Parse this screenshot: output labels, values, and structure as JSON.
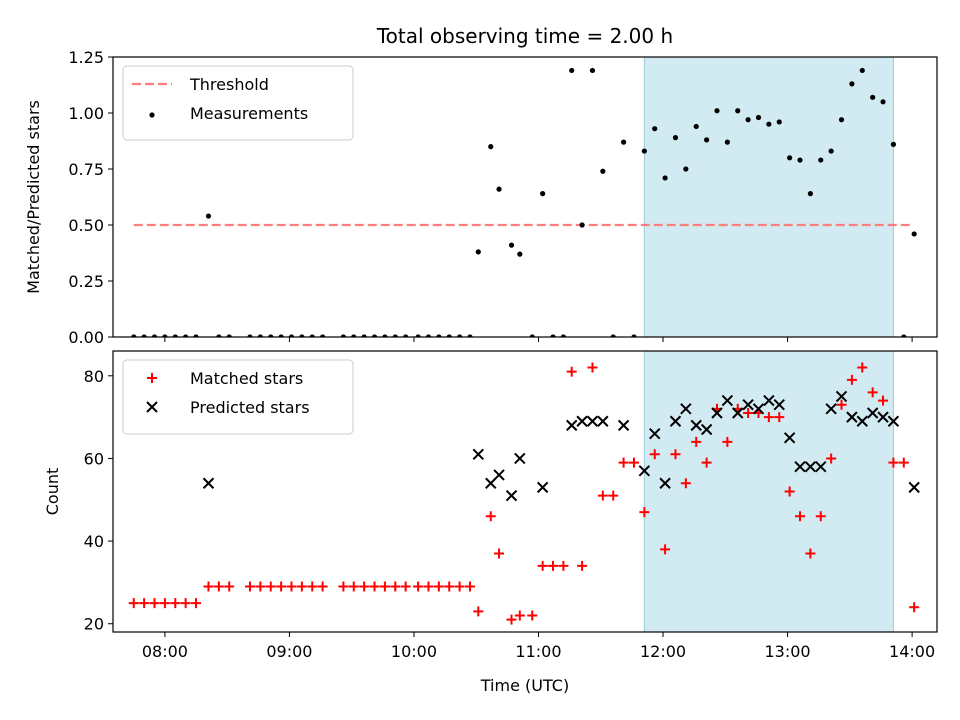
{
  "chart_data": [
    {
      "type": "scatter",
      "title": "Total observing time = 2.00 h",
      "xlabel": "",
      "ylabel": "Matched/Predicted stars",
      "ylim": [
        0,
        1.25
      ],
      "yticks": [
        "0.00",
        "0.25",
        "0.50",
        "0.75",
        "1.00",
        "1.25"
      ],
      "xlim": [
        "07:35",
        "14:12"
      ],
      "grid": false,
      "legend_position": "top-left",
      "highlight_span": {
        "start": "11:51",
        "end": "13:51",
        "color": "#add8e6"
      },
      "threshold": {
        "name": "Threshold",
        "value": 0.5,
        "x_start": "07:45",
        "x_end": "14:00",
        "color": "#ff7f7f",
        "style": "dashed"
      },
      "series": [
        {
          "name": "Measurements",
          "marker": "dot",
          "color": "#000000",
          "points": [
            [
              "07:45",
              0
            ],
            [
              "07:50",
              0
            ],
            [
              "07:55",
              0
            ],
            [
              "08:00",
              0
            ],
            [
              "08:05",
              0
            ],
            [
              "08:10",
              0
            ],
            [
              "08:15",
              0
            ],
            [
              "08:21",
              0.54
            ],
            [
              "08:26",
              0
            ],
            [
              "08:31",
              0
            ],
            [
              "08:41",
              0
            ],
            [
              "08:46",
              0
            ],
            [
              "08:51",
              0
            ],
            [
              "08:56",
              0
            ],
            [
              "09:01",
              0
            ],
            [
              "09:06",
              0
            ],
            [
              "09:11",
              0
            ],
            [
              "09:16",
              0
            ],
            [
              "09:26",
              0
            ],
            [
              "09:31",
              0
            ],
            [
              "09:36",
              0
            ],
            [
              "09:41",
              0
            ],
            [
              "09:46",
              0
            ],
            [
              "09:51",
              0
            ],
            [
              "09:56",
              0
            ],
            [
              "10:02",
              0
            ],
            [
              "10:07",
              0
            ],
            [
              "10:12",
              0
            ],
            [
              "10:17",
              0
            ],
            [
              "10:22",
              0
            ],
            [
              "10:27",
              0
            ],
            [
              "10:31",
              0.38
            ],
            [
              "10:37",
              0.85
            ],
            [
              "10:41",
              0.66
            ],
            [
              "10:47",
              0.41
            ],
            [
              "10:51",
              0.37
            ],
            [
              "10:57",
              0
            ],
            [
              "11:02",
              0.64
            ],
            [
              "11:07",
              0
            ],
            [
              "11:12",
              0
            ],
            [
              "11:16",
              1.19
            ],
            [
              "11:21",
              0.5
            ],
            [
              "11:26",
              1.19
            ],
            [
              "11:31",
              0.74
            ],
            [
              "11:36",
              0
            ],
            [
              "11:41",
              0.87
            ],
            [
              "11:46",
              0
            ],
            [
              "11:51",
              0.83
            ],
            [
              "11:56",
              0.93
            ],
            [
              "12:01",
              0.71
            ],
            [
              "12:06",
              0.89
            ],
            [
              "12:11",
              0.75
            ],
            [
              "12:16",
              0.94
            ],
            [
              "12:21",
              0.88
            ],
            [
              "12:26",
              1.01
            ],
            [
              "12:31",
              0.87
            ],
            [
              "12:36",
              1.01
            ],
            [
              "12:41",
              0.97
            ],
            [
              "12:46",
              0.98
            ],
            [
              "12:51",
              0.95
            ],
            [
              "12:56",
              0.96
            ],
            [
              "13:01",
              0.8
            ],
            [
              "13:06",
              0.79
            ],
            [
              "13:11",
              0.64
            ],
            [
              "13:16",
              0.79
            ],
            [
              "13:21",
              0.83
            ],
            [
              "13:26",
              0.97
            ],
            [
              "13:31",
              1.13
            ],
            [
              "13:36",
              1.19
            ],
            [
              "13:41",
              1.07
            ],
            [
              "13:46",
              1.05
            ],
            [
              "13:51",
              0.86
            ],
            [
              "13:56",
              0
            ],
            [
              "14:01",
              0.46
            ]
          ]
        }
      ]
    },
    {
      "type": "scatter",
      "title": "",
      "xlabel": "Time (UTC)",
      "ylabel": "Count",
      "ylim": [
        18,
        86
      ],
      "yticks": [
        "20",
        "40",
        "60",
        "80"
      ],
      "xlim": [
        "07:35",
        "14:12"
      ],
      "xticks": [
        "08:00",
        "09:00",
        "10:00",
        "11:00",
        "12:00",
        "13:00",
        "14:00"
      ],
      "grid": false,
      "legend_position": "top-left",
      "highlight_span": {
        "start": "11:51",
        "end": "13:51",
        "color": "#add8e6"
      },
      "series": [
        {
          "name": "Matched stars",
          "marker": "plus",
          "color": "#ff0000",
          "points": [
            [
              "07:45",
              25
            ],
            [
              "07:50",
              25
            ],
            [
              "07:55",
              25
            ],
            [
              "08:00",
              25
            ],
            [
              "08:05",
              25
            ],
            [
              "08:10",
              25
            ],
            [
              "08:15",
              25
            ],
            [
              "08:21",
              29
            ],
            [
              "08:26",
              29
            ],
            [
              "08:31",
              29
            ],
            [
              "08:41",
              29
            ],
            [
              "08:46",
              29
            ],
            [
              "08:51",
              29
            ],
            [
              "08:56",
              29
            ],
            [
              "09:01",
              29
            ],
            [
              "09:06",
              29
            ],
            [
              "09:11",
              29
            ],
            [
              "09:16",
              29
            ],
            [
              "09:26",
              29
            ],
            [
              "09:31",
              29
            ],
            [
              "09:36",
              29
            ],
            [
              "09:41",
              29
            ],
            [
              "09:46",
              29
            ],
            [
              "09:51",
              29
            ],
            [
              "09:56",
              29
            ],
            [
              "10:02",
              29
            ],
            [
              "10:07",
              29
            ],
            [
              "10:12",
              29
            ],
            [
              "10:17",
              29
            ],
            [
              "10:22",
              29
            ],
            [
              "10:27",
              29
            ],
            [
              "10:31",
              23
            ],
            [
              "10:37",
              46
            ],
            [
              "10:41",
              37
            ],
            [
              "10:47",
              21
            ],
            [
              "10:51",
              22
            ],
            [
              "10:57",
              22
            ],
            [
              "11:02",
              34
            ],
            [
              "11:07",
              34
            ],
            [
              "11:12",
              34
            ],
            [
              "11:16",
              81
            ],
            [
              "11:21",
              34
            ],
            [
              "11:26",
              82
            ],
            [
              "11:31",
              51
            ],
            [
              "11:36",
              51
            ],
            [
              "11:41",
              59
            ],
            [
              "11:46",
              59
            ],
            [
              "11:51",
              47
            ],
            [
              "11:56",
              61
            ],
            [
              "12:01",
              38
            ],
            [
              "12:06",
              61
            ],
            [
              "12:11",
              54
            ],
            [
              "12:16",
              64
            ],
            [
              "12:21",
              59
            ],
            [
              "12:26",
              72
            ],
            [
              "12:31",
              64
            ],
            [
              "12:36",
              72
            ],
            [
              "12:41",
              71
            ],
            [
              "12:46",
              71
            ],
            [
              "12:51",
              70
            ],
            [
              "12:56",
              70
            ],
            [
              "13:01",
              52
            ],
            [
              "13:06",
              46
            ],
            [
              "13:11",
              37
            ],
            [
              "13:16",
              46
            ],
            [
              "13:21",
              60
            ],
            [
              "13:26",
              73
            ],
            [
              "13:31",
              79
            ],
            [
              "13:36",
              82
            ],
            [
              "13:41",
              76
            ],
            [
              "13:46",
              74
            ],
            [
              "13:51",
              59
            ],
            [
              "13:56",
              59
            ],
            [
              "14:01",
              24
            ]
          ]
        },
        {
          "name": "Predicted stars",
          "marker": "x",
          "color": "#000000",
          "points": [
            [
              "08:21",
              54
            ],
            [
              "10:31",
              61
            ],
            [
              "10:37",
              54
            ],
            [
              "10:41",
              56
            ],
            [
              "10:47",
              51
            ],
            [
              "10:51",
              60
            ],
            [
              "11:02",
              53
            ],
            [
              "11:16",
              68
            ],
            [
              "11:21",
              69
            ],
            [
              "11:26",
              69
            ],
            [
              "11:31",
              69
            ],
            [
              "11:41",
              68
            ],
            [
              "11:51",
              57
            ],
            [
              "11:56",
              66
            ],
            [
              "12:01",
              54
            ],
            [
              "12:06",
              69
            ],
            [
              "12:11",
              72
            ],
            [
              "12:16",
              68
            ],
            [
              "12:21",
              67
            ],
            [
              "12:26",
              71
            ],
            [
              "12:31",
              74
            ],
            [
              "12:36",
              71
            ],
            [
              "12:41",
              73
            ],
            [
              "12:46",
              72
            ],
            [
              "12:51",
              74
            ],
            [
              "12:56",
              73
            ],
            [
              "13:01",
              65
            ],
            [
              "13:06",
              58
            ],
            [
              "13:11",
              58
            ],
            [
              "13:16",
              58
            ],
            [
              "13:21",
              72
            ],
            [
              "13:26",
              75
            ],
            [
              "13:31",
              70
            ],
            [
              "13:36",
              69
            ],
            [
              "13:41",
              71
            ],
            [
              "13:46",
              70
            ],
            [
              "13:51",
              69
            ],
            [
              "14:01",
              53
            ]
          ]
        }
      ]
    }
  ]
}
